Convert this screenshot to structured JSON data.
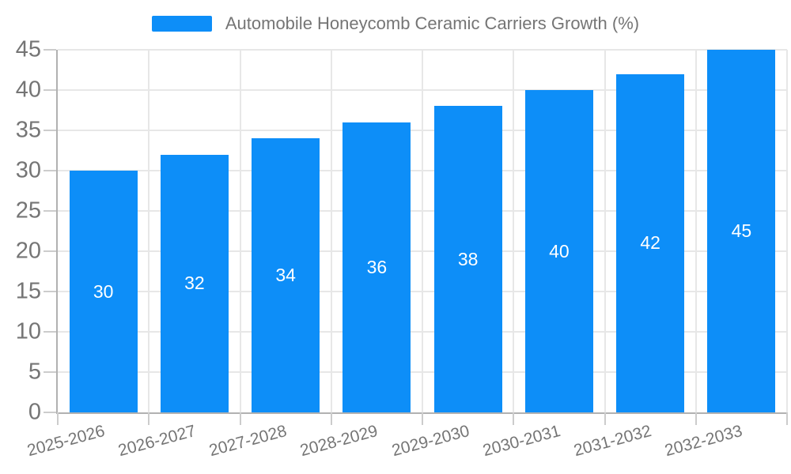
{
  "legend": {
    "label": "Automobile Honeycomb Ceramic Carriers Growth (%)"
  },
  "colors": {
    "bar": "#0d8ef8",
    "bar_label": "#ffffff",
    "axis_text": "#757575",
    "legend_text": "#757575",
    "grid_line": "#e7e7e7",
    "axis_line": "#b1b1b1",
    "tick_line": "#cccccc",
    "background": "#ffffff"
  },
  "chart_data": {
    "type": "bar",
    "title": "Automobile Honeycomb Ceramic Carriers Growth (%)",
    "categories": [
      "2025-2026",
      "2026-2027",
      "2027-2028",
      "2028-2029",
      "2029-2030",
      "2030-2031",
      "2031-2032",
      "2032-2033"
    ],
    "values": [
      30,
      32,
      34,
      36,
      38,
      40,
      42,
      45
    ],
    "bar_labels": [
      "30",
      "32",
      "34",
      "36",
      "38",
      "40",
      "42",
      "45"
    ],
    "xlabel": "",
    "ylabel": "",
    "ylim": [
      0,
      45
    ],
    "ytick_step": 5,
    "yticks": [
      0,
      5,
      10,
      15,
      20,
      25,
      30,
      35,
      40,
      45
    ],
    "grid": true,
    "legend_position": "top",
    "x_label_rotation_deg": 15
  }
}
